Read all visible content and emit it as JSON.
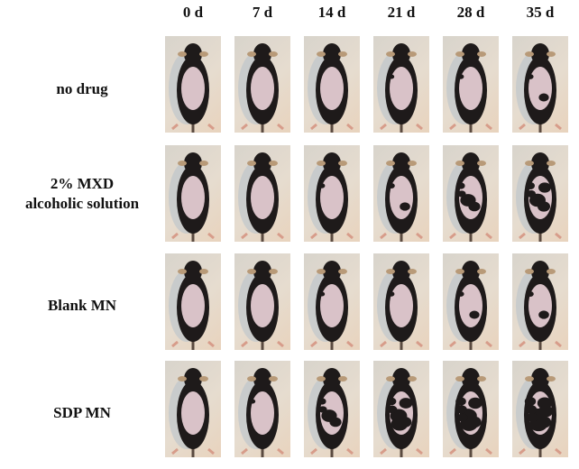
{
  "figure": {
    "columns": [
      {
        "label": "0 d"
      },
      {
        "label": "7 d"
      },
      {
        "label": "14 d"
      },
      {
        "label": "21 d"
      },
      {
        "label": "28 d"
      },
      {
        "label": "35 d"
      }
    ],
    "rows": [
      {
        "label_lines": [
          "no drug"
        ],
        "hair_regrowth": [
          0,
          0,
          0,
          0.05,
          0.1,
          0.15
        ]
      },
      {
        "label_lines": [
          "2% MXD",
          "alcoholic solution"
        ],
        "hair_regrowth": [
          0,
          0,
          0.1,
          0.2,
          0.4,
          0.5
        ]
      },
      {
        "label_lines": [
          "Blank MN"
        ],
        "hair_regrowth": [
          0,
          0,
          0.05,
          0.1,
          0.15,
          0.2
        ]
      },
      {
        "label_lines": [
          "SDP MN"
        ],
        "hair_regrowth": [
          0,
          0.05,
          0.4,
          0.6,
          0.7,
          0.8
        ]
      }
    ],
    "colors": {
      "background": "#ffffff",
      "fur": "#1e1a1a",
      "skin": "#d9c2c8",
      "photo_bg": "#e4dccf",
      "ear": "#b89a78",
      "paw": "#d79c8a"
    }
  }
}
